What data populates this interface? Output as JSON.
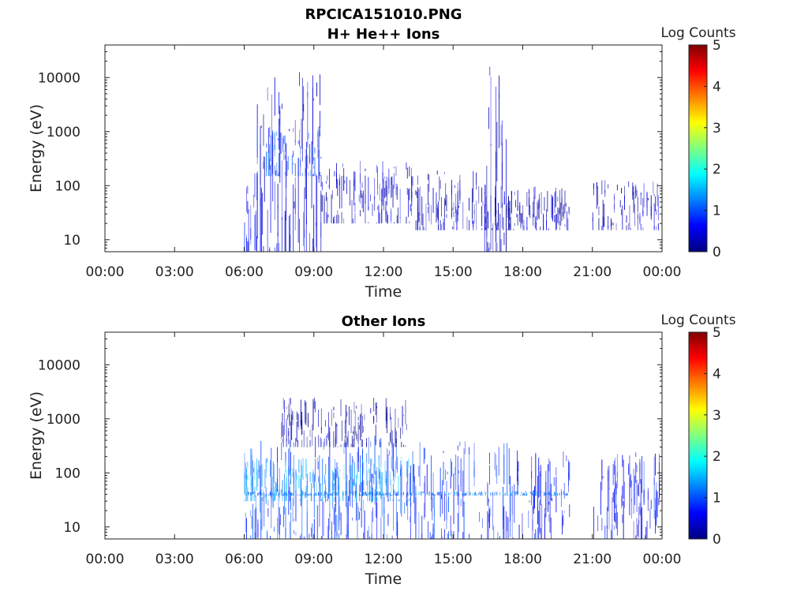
{
  "figure": {
    "title": "RPCICA151010.PNG"
  },
  "chart_data": [
    {
      "type": "heatmap",
      "title": "H+ He++ Ions",
      "xlabel": "Time",
      "ylabel": "Energy (eV)",
      "yscale": "log",
      "ylim": [
        6,
        40000
      ],
      "xlim": [
        "00:00",
        "24:00"
      ],
      "xticks": [
        "00:00",
        "03:00",
        "06:00",
        "09:00",
        "12:00",
        "15:00",
        "18:00",
        "21:00",
        "00:00"
      ],
      "yticks": [
        10,
        100,
        1000,
        10000
      ],
      "ytick_labels": [
        "10",
        "100",
        "1000",
        "10000"
      ],
      "colorbar": {
        "label": "Log Counts",
        "range": [
          0,
          5
        ],
        "ticks": [
          "0",
          "1",
          "2",
          "3",
          "4",
          "5"
        ]
      },
      "regions": [
        {
          "t_start": 6.0,
          "t_end": 6.55,
          "e_min": 6,
          "e_max": 180,
          "log_counts": 0.7
        },
        {
          "t_start": 6.55,
          "t_end": 9.3,
          "e_min": 6,
          "e_max": 14000,
          "log_counts": 0.5
        },
        {
          "t_start": 6.55,
          "t_end": 9.3,
          "e_min": 150,
          "e_max": 1200,
          "log_counts": 0.9
        },
        {
          "t_start": 9.3,
          "t_end": 13.2,
          "e_min": 20,
          "e_max": 300,
          "log_counts": 0.35
        },
        {
          "t_start": 13.2,
          "t_end": 16.0,
          "e_min": 15,
          "e_max": 200,
          "log_counts": 0.3
        },
        {
          "t_start": 16.3,
          "t_end": 17.3,
          "e_min": 6,
          "e_max": 17000,
          "log_counts": 0.35
        },
        {
          "t_start": 16.0,
          "t_end": 20.0,
          "e_min": 15,
          "e_max": 100,
          "log_counts": 0.3
        },
        {
          "t_start": 21.0,
          "t_end": 23.9,
          "e_min": 15,
          "e_max": 130,
          "log_counts": 0.3
        }
      ]
    },
    {
      "type": "heatmap",
      "title": "Other Ions",
      "xlabel": "Time",
      "ylabel": "Energy (eV)",
      "yscale": "log",
      "ylim": [
        6,
        40000
      ],
      "xlim": [
        "00:00",
        "24:00"
      ],
      "xticks": [
        "00:00",
        "03:00",
        "06:00",
        "09:00",
        "12:00",
        "15:00",
        "18:00",
        "21:00",
        "00:00"
      ],
      "yticks": [
        10,
        100,
        1000,
        10000
      ],
      "ytick_labels": [
        "10",
        "100",
        "1000",
        "10000"
      ],
      "colorbar": {
        "label": "Log Counts",
        "range": [
          0,
          5
        ],
        "ticks": [
          "0",
          "1",
          "2",
          "3",
          "4",
          "5"
        ]
      },
      "regions": [
        {
          "t_start": 6.0,
          "t_end": 13.2,
          "e_min": 6,
          "e_max": 500,
          "log_counts": 0.9
        },
        {
          "t_start": 6.0,
          "t_end": 13.2,
          "e_min": 30,
          "e_max": 200,
          "log_counts": 1.4
        },
        {
          "t_start": 13.2,
          "t_end": 17.7,
          "e_min": 6,
          "e_max": 400,
          "log_counts": 0.8
        },
        {
          "t_start": 17.7,
          "t_end": 20.0,
          "e_min": 6,
          "e_max": 280,
          "log_counts": 0.6
        },
        {
          "t_start": 21.0,
          "t_end": 23.9,
          "e_min": 6,
          "e_max": 250,
          "log_counts": 0.6
        },
        {
          "t_start": 6.0,
          "t_end": 20.0,
          "e_min": 38,
          "e_max": 46,
          "log_counts": 1.2
        },
        {
          "t_start": 7.5,
          "t_end": 13.0,
          "e_min": 300,
          "e_max": 2500,
          "log_counts": 0.2
        }
      ]
    }
  ]
}
